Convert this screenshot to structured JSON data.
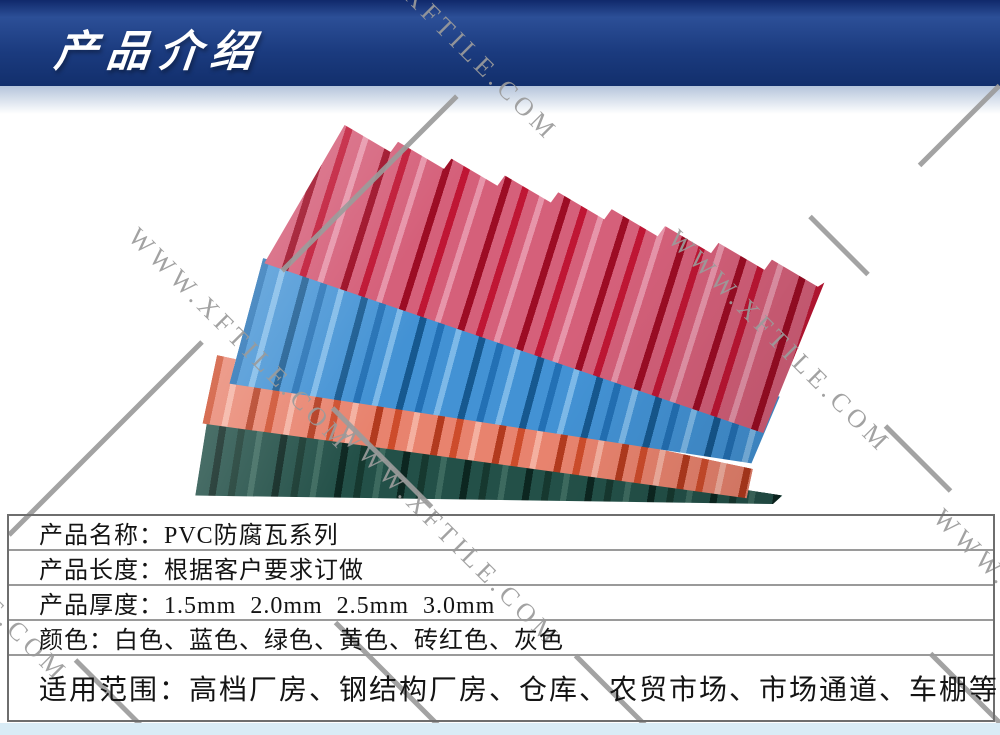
{
  "header": {
    "title": "产品介绍"
  },
  "watermark": {
    "text": "WWW.XFTILE.COM",
    "color": "#9b9b9b"
  },
  "product_photo": {
    "sheets": [
      {
        "name": "red",
        "base": "#d5607a",
        "dark": "#bf1634",
        "light": "#e795aa",
        "deep": "#9c0c24"
      },
      {
        "name": "blue",
        "base": "#4392d4",
        "dark": "#2370b4",
        "light": "#7db9e8",
        "deep": "#16588f"
      },
      {
        "name": "salmon",
        "base": "#e8836e",
        "dark": "#cd4c2b",
        "light": "#f4b0a0",
        "deep": "#b23a1e"
      },
      {
        "name": "green",
        "base": "#235048",
        "dark": "#16382f",
        "light": "#3d6a5f",
        "deep": "#0c2620"
      }
    ]
  },
  "spec_table": {
    "rows": [
      {
        "text": "产品名称：PVC防腐瓦系列"
      },
      {
        "text": "产品长度：根据客户要求订做"
      },
      {
        "text": "产品厚度：1.5mm  2.0mm  2.5mm  3.0mm"
      },
      {
        "text": "颜色：白色、蓝色、绿色、黄色、砖红色、灰色"
      },
      {
        "text": "适用范围：高档厂房、钢结构厂房、仓库、农贸市场、市场通道、车棚等"
      }
    ]
  },
  "footer": {
    "strip_color": "#d9ecf6"
  }
}
